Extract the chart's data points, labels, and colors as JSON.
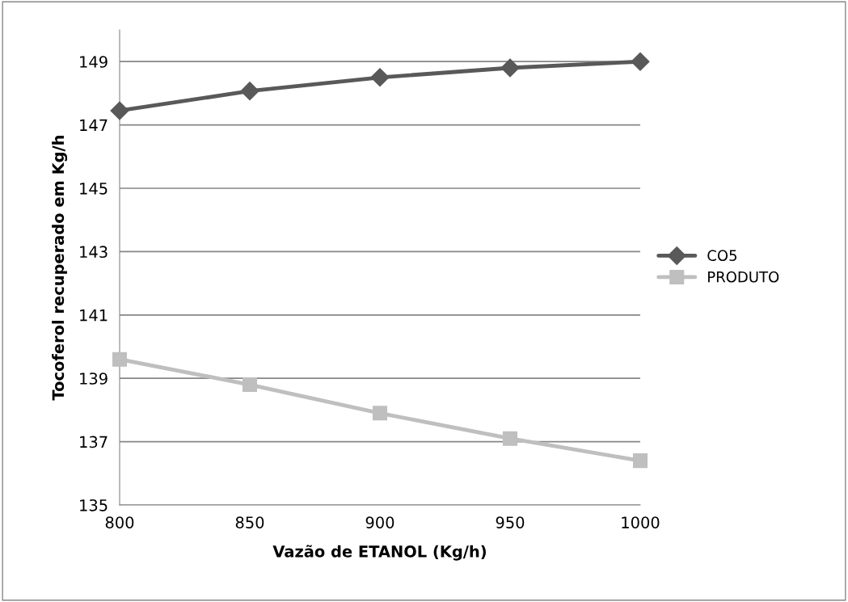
{
  "chart_data": {
    "type": "line",
    "xlabel": "Vazão de ETANOL (Kg/h)",
    "ylabel": "Tocoferol recuperado em Kg/h",
    "x": [
      800,
      850,
      900,
      950,
      1000
    ],
    "series": [
      {
        "name": "CO5",
        "color": "#595959",
        "marker": "diamond",
        "values": [
          147.45,
          148.07,
          148.5,
          148.8,
          149.0
        ]
      },
      {
        "name": "PRODUTO",
        "color": "#bfbfbf",
        "marker": "square",
        "values": [
          139.6,
          138.8,
          137.9,
          137.1,
          136.4
        ]
      }
    ],
    "xlim": [
      800,
      1000
    ],
    "xticks": [
      800,
      850,
      900,
      950,
      1000
    ],
    "ylim": [
      135,
      150
    ],
    "yticks": [
      135,
      137,
      139,
      141,
      143,
      145,
      147,
      149
    ],
    "grid": "y",
    "legend": "right",
    "line_style": "solid"
  }
}
